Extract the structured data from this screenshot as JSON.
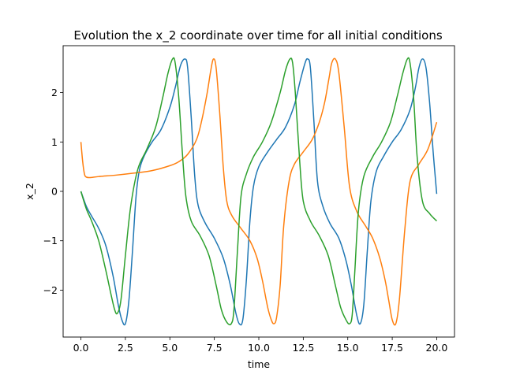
{
  "chart_data": {
    "type": "line",
    "title": "Evolution the x_2 coordinate over time for all initial conditions",
    "xlabel": "time",
    "ylabel": "x_2",
    "xlim": [
      -1.0,
      21.0
    ],
    "ylim": [
      -2.95,
      2.95
    ],
    "xticks": [
      0.0,
      2.5,
      5.0,
      7.5,
      10.0,
      12.5,
      15.0,
      17.5,
      20.0
    ],
    "xtick_labels": [
      "0.0",
      "2.5",
      "5.0",
      "7.5",
      "10.0",
      "12.5",
      "15.0",
      "17.5",
      "20.0"
    ],
    "yticks": [
      -2,
      -1,
      0,
      1,
      2
    ],
    "ytick_labels": [
      "−2",
      "−1",
      "0",
      "1",
      "2"
    ],
    "grid": false,
    "legend": false,
    "series": [
      {
        "color": "#1f77b4",
        "x": [
          0.0,
          0.3,
          0.6,
          1.0,
          1.4,
          1.8,
          2.1,
          2.3,
          2.5,
          2.7,
          2.9,
          3.1,
          3.3,
          3.6,
          4.0,
          4.5,
          5.0,
          5.3,
          5.6,
          5.85,
          6.0,
          6.2,
          6.4,
          6.6,
          7.0,
          7.5,
          8.0,
          8.4,
          8.7,
          8.9,
          9.1,
          9.3,
          9.5,
          9.7,
          10.0,
          10.5,
          11.0,
          11.5,
          12.0,
          12.3,
          12.6,
          12.75,
          12.9,
          13.1,
          13.3,
          13.6,
          14.0,
          14.5,
          14.9,
          15.2,
          15.5,
          15.7,
          15.9,
          16.1,
          16.3,
          16.6,
          17.0,
          17.5,
          18.0,
          18.5,
          18.8,
          19.0,
          19.2,
          19.4,
          19.6,
          19.8,
          20.0
        ],
        "y": [
          0.0,
          -0.3,
          -0.5,
          -0.75,
          -1.1,
          -1.7,
          -2.3,
          -2.6,
          -2.68,
          -2.2,
          -1.2,
          -0.1,
          0.45,
          0.75,
          1.0,
          1.25,
          1.7,
          2.1,
          2.55,
          2.68,
          2.5,
          1.5,
          0.3,
          -0.3,
          -0.65,
          -0.95,
          -1.35,
          -1.9,
          -2.45,
          -2.68,
          -2.6,
          -1.8,
          -0.6,
          0.1,
          0.5,
          0.8,
          1.05,
          1.3,
          1.75,
          2.2,
          2.6,
          2.68,
          2.5,
          1.4,
          0.2,
          -0.3,
          -0.65,
          -0.95,
          -1.4,
          -1.9,
          -2.5,
          -2.68,
          -2.3,
          -1.2,
          -0.2,
          0.4,
          0.7,
          1.0,
          1.25,
          1.65,
          2.1,
          2.5,
          2.68,
          2.5,
          1.8,
          0.8,
          -0.05
        ]
      },
      {
        "color": "#ff7f0e",
        "x": [
          0.0,
          0.1,
          0.2,
          0.3,
          0.5,
          1.0,
          2.0,
          3.0,
          4.0,
          5.0,
          5.5,
          6.0,
          6.5,
          6.8,
          7.1,
          7.3,
          7.45,
          7.6,
          7.8,
          8.0,
          8.2,
          8.5,
          9.0,
          9.5,
          9.9,
          10.2,
          10.5,
          10.7,
          10.85,
          11.0,
          11.2,
          11.4,
          11.7,
          12.0,
          12.5,
          13.0,
          13.4,
          13.7,
          13.95,
          14.1,
          14.3,
          14.5,
          14.8,
          15.1,
          15.5,
          16.0,
          16.4,
          16.8,
          17.1,
          17.3,
          17.5,
          17.7,
          17.9,
          18.2,
          18.5,
          19.0,
          19.5,
          20.0
        ],
        "y": [
          1.0,
          0.6,
          0.35,
          0.29,
          0.28,
          0.3,
          0.33,
          0.37,
          0.42,
          0.52,
          0.6,
          0.75,
          1.05,
          1.45,
          2.0,
          2.45,
          2.68,
          2.5,
          1.6,
          0.5,
          -0.2,
          -0.5,
          -0.75,
          -1.0,
          -1.35,
          -1.8,
          -2.35,
          -2.6,
          -2.68,
          -2.55,
          -1.9,
          -0.7,
          0.2,
          0.55,
          0.8,
          1.05,
          1.4,
          1.8,
          2.3,
          2.6,
          2.68,
          2.4,
          1.3,
          0.1,
          -0.4,
          -0.7,
          -0.95,
          -1.35,
          -1.8,
          -2.2,
          -2.6,
          -2.68,
          -2.2,
          -0.8,
          0.2,
          0.55,
          0.85,
          1.4
        ]
      },
      {
        "color": "#2ca02c",
        "x": [
          0.0,
          0.3,
          0.6,
          1.0,
          1.4,
          1.7,
          1.9,
          2.05,
          2.25,
          2.5,
          2.8,
          3.2,
          3.7,
          4.2,
          4.6,
          4.9,
          5.15,
          5.3,
          5.5,
          5.7,
          5.9,
          6.2,
          6.7,
          7.2,
          7.6,
          7.9,
          8.2,
          8.45,
          8.6,
          8.8,
          9.0,
          9.3,
          9.7,
          10.2,
          10.7,
          11.2,
          11.5,
          11.75,
          11.9,
          12.05,
          12.3,
          12.5,
          12.9,
          13.4,
          13.9,
          14.3,
          14.6,
          14.9,
          15.1,
          15.25,
          15.4,
          15.6,
          15.9,
          16.4,
          16.9,
          17.4,
          17.8,
          18.1,
          18.35,
          18.5,
          18.7,
          18.9,
          19.2,
          19.6,
          20.0
        ],
        "y": [
          0.0,
          -0.35,
          -0.6,
          -1.0,
          -1.6,
          -2.1,
          -2.4,
          -2.47,
          -2.2,
          -1.3,
          -0.3,
          0.45,
          0.85,
          1.3,
          1.9,
          2.4,
          2.68,
          2.6,
          1.9,
          0.8,
          -0.1,
          -0.6,
          -0.9,
          -1.3,
          -1.9,
          -2.4,
          -2.65,
          -2.68,
          -2.4,
          -1.2,
          -0.1,
          0.35,
          0.7,
          1.0,
          1.4,
          2.0,
          2.45,
          2.68,
          2.6,
          2.0,
          0.6,
          -0.2,
          -0.6,
          -0.9,
          -1.3,
          -1.9,
          -2.35,
          -2.6,
          -2.68,
          -2.5,
          -1.6,
          -0.4,
          0.3,
          0.7,
          1.0,
          1.4,
          1.95,
          2.4,
          2.68,
          2.6,
          1.9,
          0.7,
          -0.2,
          -0.45,
          -0.6
        ]
      }
    ]
  }
}
